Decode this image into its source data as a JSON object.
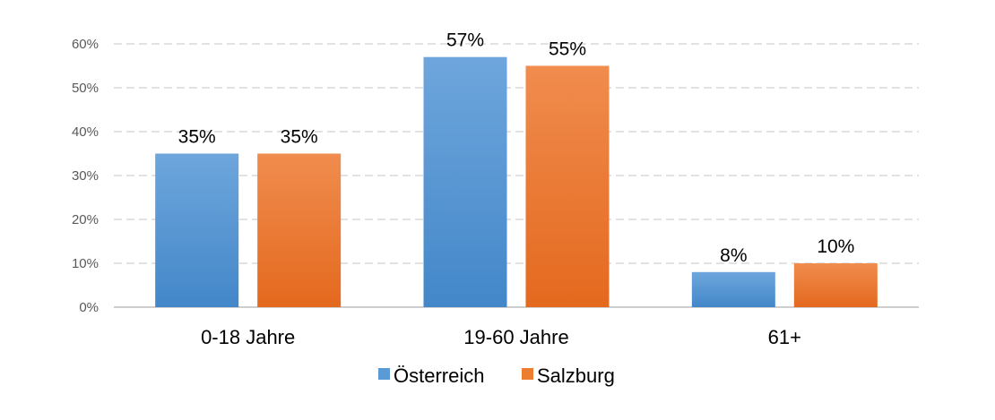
{
  "chart_data": {
    "type": "bar",
    "categories": [
      "0-18 Jahre",
      "19-60 Jahre",
      "61+"
    ],
    "series": [
      {
        "name": "Österreich",
        "values": [
          35,
          57,
          8
        ],
        "labels": [
          "35%",
          "57%",
          "8%"
        ],
        "color": "#5B9BD5"
      },
      {
        "name": "Salzburg",
        "values": [
          35,
          55,
          10
        ],
        "labels": [
          "35%",
          "55%",
          "10%"
        ],
        "color": "#ED7D31"
      }
    ],
    "ylim": [
      0,
      60
    ],
    "yticks": [
      0,
      10,
      20,
      30,
      40,
      50,
      60
    ],
    "ytick_labels": [
      "0%",
      "10%",
      "20%",
      "30%",
      "40%",
      "50%",
      "60%"
    ],
    "grid": true,
    "legend_position": "bottom",
    "title": "",
    "xlabel": "",
    "ylabel": ""
  }
}
